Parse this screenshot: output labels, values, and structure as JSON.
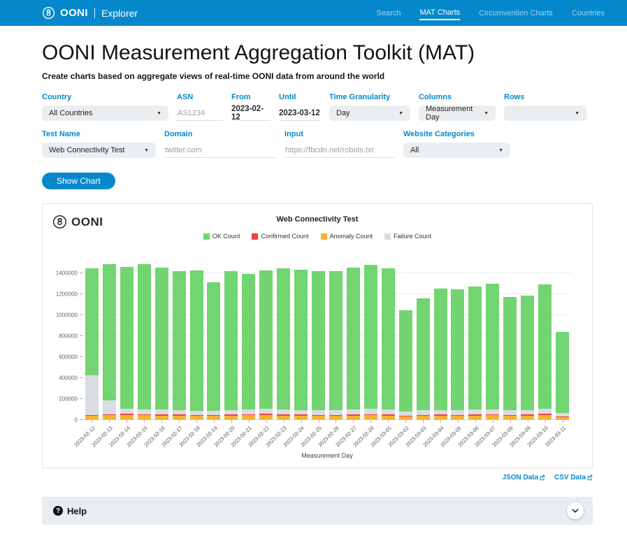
{
  "header": {
    "logo": {
      "ooni": "OONI",
      "explorer": "Explorer"
    },
    "nav": [
      {
        "label": "Search",
        "active": false
      },
      {
        "label": "MAT Charts",
        "active": true
      },
      {
        "label": "Circumvention Charts",
        "active": false
      },
      {
        "label": "Countries",
        "active": false
      }
    ]
  },
  "page": {
    "title": "OONI Measurement Aggregation Toolkit (MAT)",
    "subtitle": "Create charts based on aggregate views of real-time OONI data from around the world"
  },
  "form": {
    "country": {
      "label": "Country",
      "value": "All Countries"
    },
    "asn": {
      "label": "ASN",
      "placeholder": "AS1234"
    },
    "from": {
      "label": "From",
      "value": "2023-02-12"
    },
    "until": {
      "label": "Until",
      "value": "2023-03-12"
    },
    "time_granularity": {
      "label": "Time Granularity",
      "value": "Day"
    },
    "columns": {
      "label": "Columns",
      "value": "Measurement Day"
    },
    "rows": {
      "label": "Rows",
      "value": ""
    },
    "test_name": {
      "label": "Test Name",
      "value": "Web Connectivity Test"
    },
    "domain": {
      "label": "Domain",
      "placeholder": "twitter.com"
    },
    "input": {
      "label": "Input",
      "placeholder": "https://fbcdn.net/robots.txt"
    },
    "website_categories": {
      "label": "Website Categories",
      "value": "All"
    },
    "show_chart_label": "Show Chart"
  },
  "chart_data": {
    "type": "bar",
    "stacked": true,
    "title": "Web Connectivity Test",
    "xlabel": "Measurement Day",
    "ylim": [
      0,
      1550000
    ],
    "ytick_step": 200000,
    "ytick_max": 1400000,
    "grid": true,
    "legend_position": "top",
    "categories": [
      "2023-02-12",
      "2023-02-13",
      "2023-02-14",
      "2023-02-15",
      "2023-02-16",
      "2023-02-17",
      "2023-02-18",
      "2023-02-19",
      "2023-02-20",
      "2023-02-21",
      "2023-02-22",
      "2023-02-23",
      "2023-02-24",
      "2023-02-25",
      "2023-02-26",
      "2023-02-27",
      "2023-02-28",
      "2023-03-01",
      "2023-03-02",
      "2023-03-03",
      "2023-03-04",
      "2023-03-05",
      "2023-03-06",
      "2023-03-07",
      "2023-03-08",
      "2023-03-09",
      "2023-03-10",
      "2023-03-11"
    ],
    "series": [
      {
        "name": "OK Count",
        "color": "#72D572",
        "values": [
          1017000,
          1303000,
          1353000,
          1385000,
          1360000,
          1327000,
          1341000,
          1228000,
          1325000,
          1294000,
          1322000,
          1347000,
          1341000,
          1330000,
          1329000,
          1356000,
          1378000,
          1351000,
          963000,
          1069000,
          1161000,
          1153000,
          1176000,
          1200000,
          1087000,
          1091000,
          1194000,
          773000
        ]
      },
      {
        "name": "Confirmed Count",
        "color": "#EE4444",
        "values": [
          10000,
          10000,
          12000,
          10000,
          10000,
          10000,
          8000,
          8000,
          10000,
          10000,
          12000,
          10000,
          10000,
          10000,
          10000,
          10000,
          10000,
          10000,
          8000,
          10000,
          10000,
          10000,
          10000,
          10000,
          10000,
          10000,
          12000,
          8000
        ]
      },
      {
        "name": "Anomaly Count",
        "color": "#FBB12F",
        "values": [
          38000,
          45000,
          48000,
          45000,
          42000,
          42000,
          40000,
          38000,
          42000,
          45000,
          45000,
          42000,
          42000,
          40000,
          40000,
          42000,
          45000,
          42000,
          35000,
          40000,
          42000,
          40000,
          42000,
          45000,
          40000,
          42000,
          45000,
          28000
        ]
      },
      {
        "name": "Failure Count",
        "color": "#D9DDE2",
        "values": [
          382000,
          135000,
          50000,
          48000,
          46000,
          45000,
          42000,
          40000,
          45000,
          48000,
          50000,
          48000,
          45000,
          42000,
          45000,
          48000,
          50000,
          48000,
          40000,
          42000,
          45000,
          45000,
          48000,
          48000,
          42000,
          45000,
          48000,
          30000
        ]
      }
    ],
    "stack_bottom_to_top": [
      2,
      1,
      3,
      0
    ]
  },
  "links": {
    "json": "JSON Data",
    "csv": "CSV Data"
  },
  "help": {
    "label": "Help"
  }
}
